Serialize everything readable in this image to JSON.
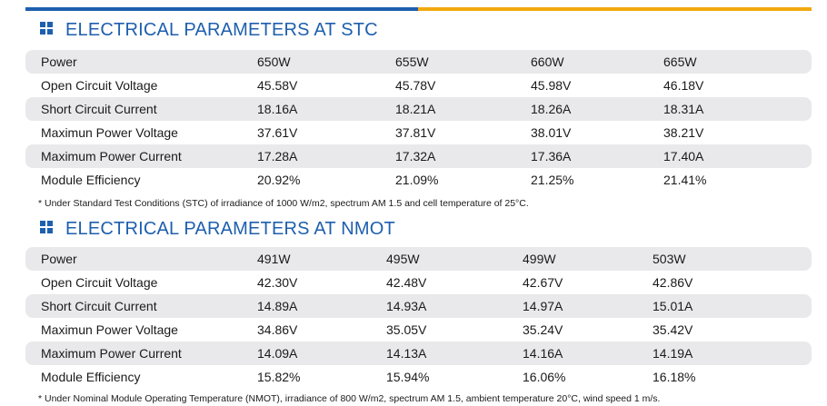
{
  "colors": {
    "accent_blue": "#1e5fae",
    "accent_gold": "#f2a90f",
    "row_shade": "#e9e9eb"
  },
  "stc": {
    "title": "ELECTRICAL PARAMETERS AT STC",
    "icon": "grid-squares-icon",
    "rows": [
      {
        "label": "Power",
        "values": [
          "650W",
          "655W",
          "660W",
          "665W"
        ]
      },
      {
        "label": "Open Circuit Voltage",
        "values": [
          "45.58V",
          "45.78V",
          "45.98V",
          "46.18V"
        ]
      },
      {
        "label": "Short Circuit Current",
        "values": [
          "18.16A",
          "18.21A",
          "18.26A",
          "18.31A"
        ]
      },
      {
        "label": "Maximun Power Voltage",
        "values": [
          "37.61V",
          "37.81V",
          "38.01V",
          "38.21V"
        ]
      },
      {
        "label": "Maximum Power Current",
        "values": [
          "17.28A",
          "17.32A",
          "17.36A",
          "17.40A"
        ]
      },
      {
        "label": "Module Efficiency",
        "values": [
          "20.92%",
          "21.09%",
          "21.25%",
          "21.41%"
        ]
      }
    ],
    "note": "* Under Standard Test Conditions (STC) of irradiance of 1000 W/m2, spectrum AM 1.5 and cell temperature of 25°C."
  },
  "nmot": {
    "title": "ELECTRICAL PARAMETERS AT NMOT",
    "icon": "grid-squares-icon",
    "rows": [
      {
        "label": "Power",
        "values": [
          "491W",
          "495W",
          "499W",
          "503W"
        ]
      },
      {
        "label": "Open Circuit Voltage",
        "values": [
          "42.30V",
          "42.48V",
          "42.67V",
          "42.86V"
        ]
      },
      {
        "label": "Short Circuit Current",
        "values": [
          "14.89A",
          "14.93A",
          "14.97A",
          "15.01A"
        ]
      },
      {
        "label": "Maximun Power Voltage",
        "values": [
          "34.86V",
          "35.05V",
          "35.24V",
          "35.42V"
        ]
      },
      {
        "label": "Maximum Power Current",
        "values": [
          "14.09A",
          "14.13A",
          "14.16A",
          "14.19A"
        ]
      },
      {
        "label": "Module Efficiency",
        "values": [
          "15.82%",
          "15.94%",
          "16.06%",
          "16.18%"
        ]
      }
    ],
    "note": "* Under Nominal Module Operating Temperature (NMOT), irradiance of 800 W/m2, spectrum AM 1.5, ambient temperature 20°C, wind speed 1 m/s."
  }
}
